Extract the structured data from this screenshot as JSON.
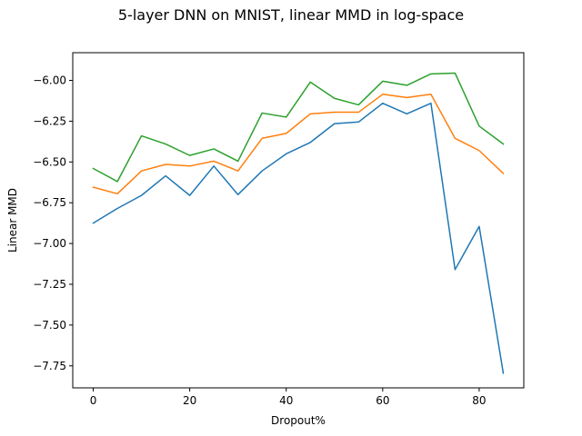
{
  "colors": {
    "series_1": "#1f77b4",
    "series_2": "#ff7f0e",
    "series_3": "#2ca02c",
    "axes": "#000000",
    "background": "#ffffff"
  },
  "chart_data": {
    "type": "line",
    "title": "5-layer DNN on MNIST, linear MMD in log-space",
    "xlabel": "Dropout%",
    "ylabel": "Linear MMD",
    "xlim": [
      -4.25,
      89.25
    ],
    "ylim": [
      -7.885,
      -5.83
    ],
    "xticks": [
      0,
      20,
      40,
      60,
      80
    ],
    "xtick_labels": [
      "0",
      "20",
      "40",
      "60",
      "80"
    ],
    "yticks": [
      -6.0,
      -6.25,
      -6.5,
      -6.75,
      -7.0,
      -7.25,
      -7.5,
      -7.75
    ],
    "ytick_labels": [
      "−6.00",
      "−6.25",
      "−6.50",
      "−6.75",
      "−7.00",
      "−7.25",
      "−7.50",
      "−7.75"
    ],
    "grid": false,
    "legend": "none",
    "x": [
      0,
      5,
      10,
      15,
      20,
      25,
      30,
      35,
      40,
      45,
      50,
      55,
      60,
      65,
      70,
      75,
      80,
      85
    ],
    "series": [
      {
        "values": [
          -6.875,
          -6.785,
          -6.705,
          -6.585,
          -6.705,
          -6.525,
          -6.7,
          -6.555,
          -6.45,
          -6.38,
          -6.265,
          -6.255,
          -6.14,
          -6.205,
          -6.14,
          -7.16,
          -6.895,
          -7.795
        ]
      },
      {
        "values": [
          -6.655,
          -6.695,
          -6.555,
          -6.515,
          -6.525,
          -6.495,
          -6.555,
          -6.355,
          -6.325,
          -6.205,
          -6.195,
          -6.195,
          -6.085,
          -6.105,
          -6.085,
          -6.355,
          -6.43,
          -6.57
        ]
      },
      {
        "values": [
          -6.54,
          -6.62,
          -6.34,
          -6.39,
          -6.46,
          -6.42,
          -6.495,
          -6.2,
          -6.225,
          -6.01,
          -6.11,
          -6.15,
          -6.005,
          -6.03,
          -5.96,
          -5.955,
          -6.28,
          -6.39
        ]
      }
    ]
  }
}
